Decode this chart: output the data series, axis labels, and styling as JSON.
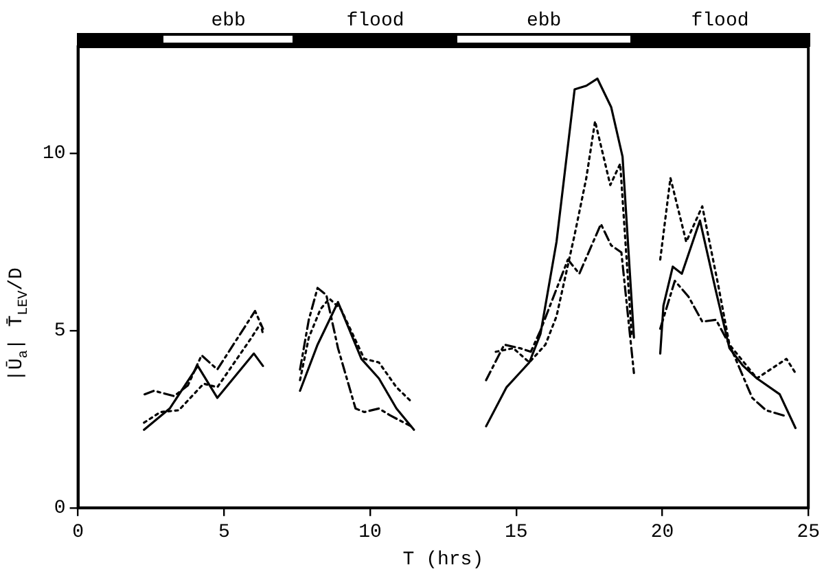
{
  "chart_data": {
    "type": "line",
    "xlabel": "T (hrs)",
    "ylabel": "|Ū$_{a}$| T̄$_{LEV}$/D",
    "xlim": [
      0,
      25
    ],
    "xticks": [
      0,
      5,
      10,
      15,
      20,
      25
    ],
    "ylim": [
      0,
      13
    ],
    "yticks": [
      0,
      5,
      10
    ],
    "grid": false,
    "legend": false,
    "marker": "none",
    "annotations": [
      "ebb",
      "flood",
      "ebb",
      "flood"
    ],
    "series": [
      {
        "color": "#000000",
        "line_style": "solid",
        "x": [
          2.26,
          3.14,
          4.1,
          4.77,
          6.02,
          6.33,
          null,
          7.6,
          8.2,
          8.9,
          9.7,
          10.3,
          10.9,
          11.5,
          null,
          13.97,
          14.67,
          15.45,
          15.83,
          16.38,
          17.0,
          17.4,
          17.78,
          18.25,
          18.64,
          19.03,
          null,
          19.93,
          20.04,
          20.36,
          20.67,
          21.29,
          21.84,
          22.3,
          22.77,
          23.24,
          24.02,
          24.56
        ],
        "values": [
          2.2,
          2.8,
          4.0,
          3.1,
          4.35,
          4.0,
          null,
          3.3,
          4.6,
          5.8,
          4.2,
          3.65,
          2.8,
          2.2,
          null,
          2.3,
          3.4,
          4.1,
          4.9,
          7.5,
          11.8,
          11.9,
          12.1,
          11.3,
          9.9,
          4.8,
          null,
          4.35,
          5.7,
          6.8,
          6.6,
          8.1,
          6.1,
          4.5,
          4.0,
          3.65,
          3.2,
          2.25
        ]
      },
      {
        "color": "#000000",
        "line_style": "dotted",
        "x": [
          2.26,
          2.82,
          3.45,
          4.3,
          4.77,
          5.94,
          6.25,
          6.33,
          null,
          7.6,
          7.9,
          8.3,
          8.6,
          9.0,
          9.8,
          10.3,
          10.9,
          11.4,
          null,
          14.3,
          14.9,
          15.45,
          16.0,
          16.38,
          17.0,
          17.4,
          17.7,
          18.22,
          18.56,
          18.95,
          null,
          19.93,
          20.28,
          20.82,
          21.37,
          21.91,
          22.3,
          23.24,
          24.25,
          24.56
        ],
        "values": [
          2.4,
          2.7,
          2.75,
          3.5,
          3.4,
          4.8,
          5.2,
          4.9,
          null,
          3.6,
          4.8,
          5.6,
          5.9,
          5.6,
          4.2,
          4.1,
          3.4,
          3.0,
          null,
          4.4,
          4.5,
          4.1,
          4.6,
          5.4,
          7.7,
          9.3,
          10.9,
          9.1,
          9.7,
          4.9,
          null,
          7.0,
          9.3,
          7.5,
          8.5,
          6.3,
          4.6,
          3.65,
          4.2,
          3.8
        ]
      },
      {
        "color": "#000000",
        "line_style": "dashed",
        "x": [
          2.28,
          2.6,
          3.29,
          3.76,
          4.23,
          4.77,
          6.06,
          6.33,
          null,
          7.6,
          7.9,
          8.2,
          8.5,
          8.9,
          9.5,
          9.8,
          10.3,
          10.7,
          11.4,
          null,
          13.97,
          14.59,
          15.13,
          15.5,
          15.83,
          16.77,
          17.16,
          17.9,
          18.25,
          18.6,
          19.03,
          null,
          19.93,
          20.43,
          20.9,
          21.37,
          21.84,
          22.3,
          23.08,
          23.55,
          24.17
        ],
        "values": [
          3.2,
          3.3,
          3.15,
          3.45,
          4.3,
          3.9,
          5.55,
          5.05,
          null,
          3.9,
          5.3,
          6.2,
          6.0,
          4.5,
          2.8,
          2.7,
          2.8,
          2.6,
          2.3,
          null,
          3.6,
          4.6,
          4.5,
          4.4,
          5.0,
          7.0,
          6.6,
          8.0,
          7.4,
          7.2,
          3.8,
          null,
          5.05,
          6.4,
          5.95,
          5.25,
          5.3,
          4.6,
          3.1,
          2.75,
          2.6
        ]
      }
    ]
  }
}
